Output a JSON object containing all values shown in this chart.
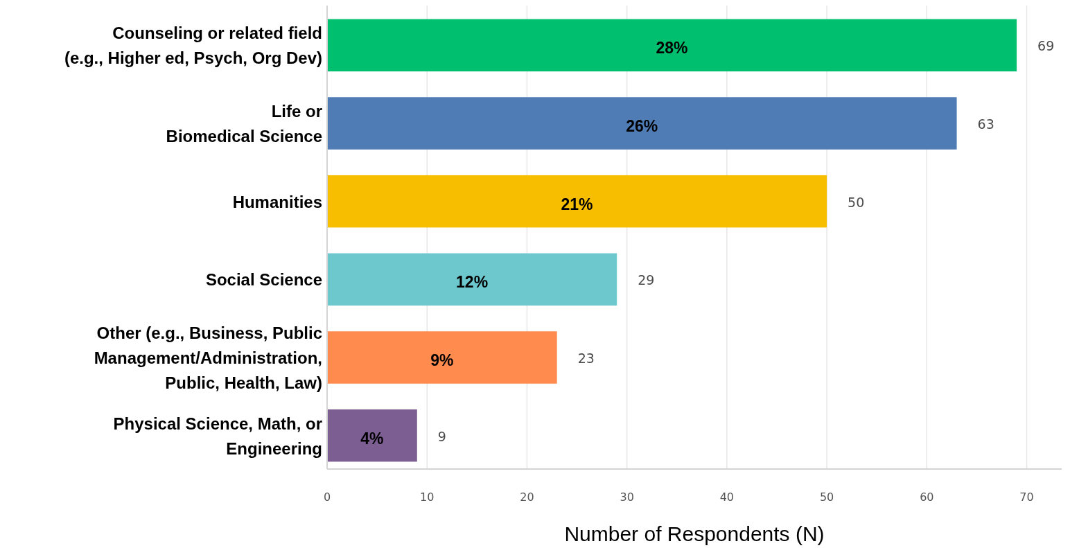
{
  "chart_data": {
    "type": "bar",
    "orientation": "horizontal",
    "categories": [
      "Counseling or related field\n(e.g., Higher ed, Psych, Org Dev)",
      "Life or\nBiomedical Science",
      "Humanities",
      "Social Science",
      "Other (e.g., Business, Public\nManagement/Administration,\nPublic, Health, Law)",
      "Physical Science, Math, or\nEngineering"
    ],
    "values": [
      69,
      63,
      50,
      29,
      23,
      9
    ],
    "colors": [
      "#00bf6f",
      "#4f7cb5",
      "#f7be00",
      "#6dc8cd",
      "#ff8b4f",
      "#7d5e92"
    ],
    "data_labels": true,
    "annotations": [
      "28%",
      "26%",
      "21%",
      "12%",
      "9%",
      "4%"
    ],
    "xlim": [
      0,
      73.5
    ],
    "xticks": [
      0,
      10,
      20,
      30,
      40,
      50,
      60,
      70
    ],
    "grid": "x",
    "xlabel": "Number of Respondents (N)"
  }
}
